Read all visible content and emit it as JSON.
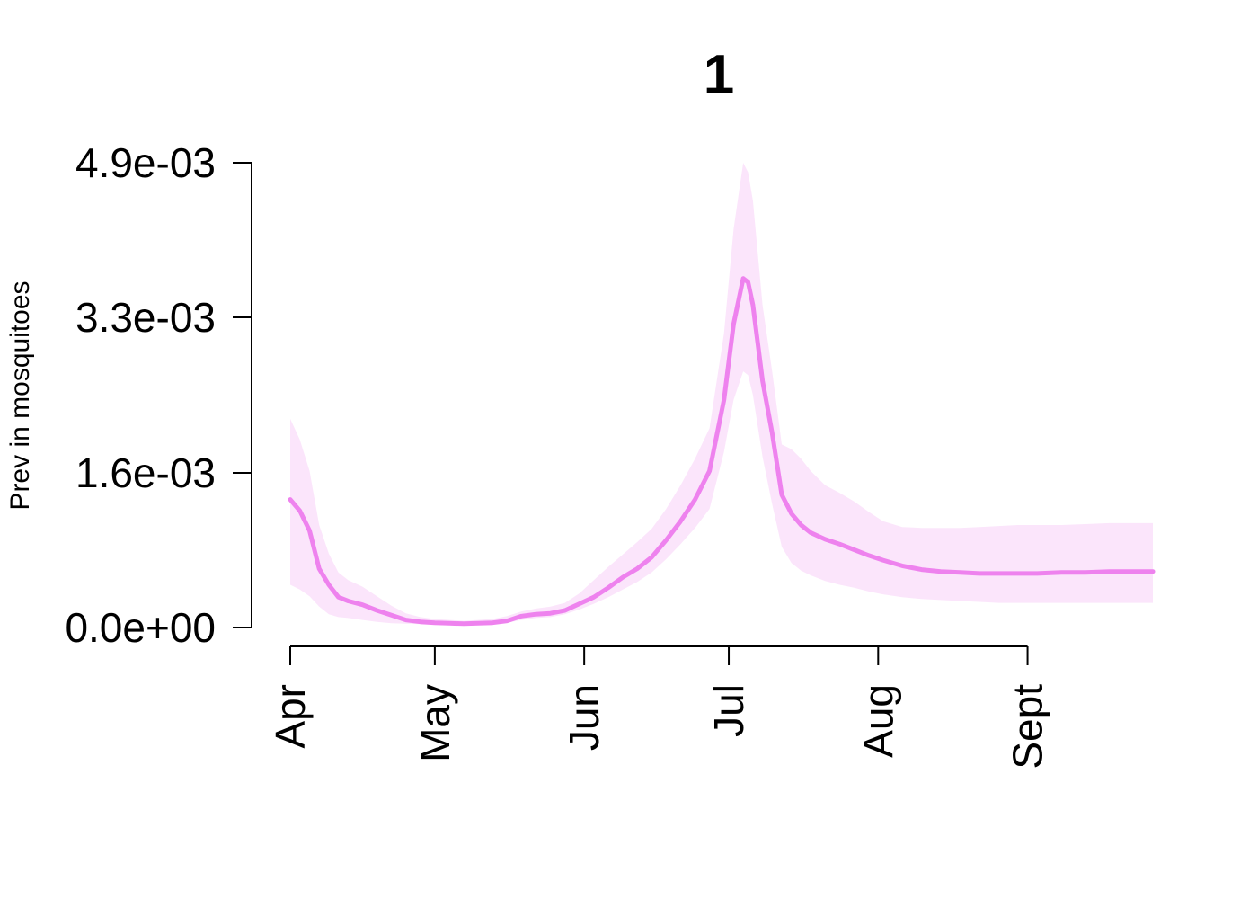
{
  "chart_data": {
    "type": "area",
    "title": "1",
    "xlabel": "",
    "ylabel": "Prev in mosquitoes",
    "x_ticks": [
      "Apr",
      "May",
      "Jun",
      "Jul",
      "Aug",
      "Sept"
    ],
    "y_ticks": [
      "0.0e+00",
      "1.6e-03",
      "3.3e-03",
      "4.9e-03"
    ],
    "y_tick_values": [
      0.0,
      0.00163,
      0.00327,
      0.0049
    ],
    "ylim": [
      0,
      0.0049
    ],
    "xlim": [
      "2023-04-01",
      "2023-09-27"
    ],
    "line_color": "#ee82ee",
    "band_color": "#fbe5fb",
    "series": [
      {
        "x": [
          "2023-04-01",
          "2023-04-03",
          "2023-04-05",
          "2023-04-07",
          "2023-04-09",
          "2023-04-11",
          "2023-04-13",
          "2023-04-16",
          "2023-04-19",
          "2023-04-22",
          "2023-04-25",
          "2023-04-28",
          "2023-05-01",
          "2023-05-04",
          "2023-05-07",
          "2023-05-10",
          "2023-05-13",
          "2023-05-16",
          "2023-05-19",
          "2023-05-22",
          "2023-05-25",
          "2023-05-28",
          "2023-05-31",
          "2023-06-03",
          "2023-06-06",
          "2023-06-09",
          "2023-06-12",
          "2023-06-15",
          "2023-06-18",
          "2023-06-21",
          "2023-06-24",
          "2023-06-27",
          "2023-06-30",
          "2023-07-02",
          "2023-07-04",
          "2023-07-05",
          "2023-07-06",
          "2023-07-08",
          "2023-07-10",
          "2023-07-12",
          "2023-07-14",
          "2023-07-16",
          "2023-07-18",
          "2023-07-21",
          "2023-07-24",
          "2023-07-27",
          "2023-07-30",
          "2023-08-02",
          "2023-08-06",
          "2023-08-10",
          "2023-08-14",
          "2023-08-18",
          "2023-08-22",
          "2023-08-26",
          "2023-08-30",
          "2023-09-03",
          "2023-09-08",
          "2023-09-13",
          "2023-09-18",
          "2023-09-23",
          "2023-09-27"
        ],
        "mean": [
          0.00135,
          0.00123,
          0.00102,
          0.00062,
          0.00045,
          0.00032,
          0.00028,
          0.00024,
          0.00018,
          0.00013,
          8e-05,
          6e-05,
          5e-05,
          4.5e-05,
          4e-05,
          4.5e-05,
          5e-05,
          7e-05,
          0.00012,
          0.00014,
          0.00015,
          0.00018,
          0.00025,
          0.00032,
          0.00042,
          0.00053,
          0.00062,
          0.00074,
          0.00092,
          0.00112,
          0.00135,
          0.00165,
          0.0024,
          0.0032,
          0.00368,
          0.00364,
          0.0034,
          0.0026,
          0.00205,
          0.0014,
          0.0012,
          0.00108,
          0.001,
          0.00093,
          0.00088,
          0.00082,
          0.00076,
          0.00071,
          0.00065,
          0.00061,
          0.00059,
          0.00058,
          0.00057,
          0.00057,
          0.00057,
          0.00057,
          0.00058,
          0.00058,
          0.00059,
          0.00059,
          0.00059
        ],
        "lower": [
          0.00045,
          0.0004,
          0.00033,
          0.00022,
          0.00014,
          0.00011,
          0.0001,
          8e-05,
          6e-05,
          4.5e-05,
          4e-05,
          3.5e-05,
          3e-05,
          3e-05,
          2.5e-05,
          3e-05,
          3.5e-05,
          5e-05,
          8e-05,
          0.0001,
          0.00011,
          0.00014,
          0.00019,
          0.00025,
          0.00032,
          0.0004,
          0.00048,
          0.00058,
          0.00072,
          0.00088,
          0.00105,
          0.00125,
          0.00185,
          0.0024,
          0.0027,
          0.00266,
          0.00245,
          0.0018,
          0.0013,
          0.00085,
          0.00068,
          0.0006,
          0.00055,
          0.00049,
          0.00045,
          0.00042,
          0.00038,
          0.00035,
          0.00032,
          0.0003,
          0.00029,
          0.00028,
          0.00027,
          0.00026,
          0.00026,
          0.00026,
          0.00026,
          0.00026,
          0.00026,
          0.00026,
          0.00026
        ],
        "upper": [
          0.0022,
          0.00198,
          0.00165,
          0.00108,
          0.00078,
          0.00058,
          0.0005,
          0.00043,
          0.00033,
          0.00023,
          0.00015,
          0.00011,
          9e-05,
          8e-05,
          7e-05,
          8e-05,
          9e-05,
          0.00012,
          0.00017,
          0.0002,
          0.00022,
          0.00026,
          0.00036,
          0.0005,
          0.00064,
          0.00077,
          0.0009,
          0.00104,
          0.00125,
          0.0015,
          0.00178,
          0.0021,
          0.0031,
          0.0042,
          0.0049,
          0.0048,
          0.0045,
          0.0034,
          0.0027,
          0.00193,
          0.00188,
          0.00178,
          0.00165,
          0.0015,
          0.00142,
          0.00133,
          0.00122,
          0.00112,
          0.00106,
          0.00105,
          0.00105,
          0.00105,
          0.00106,
          0.00107,
          0.00108,
          0.00108,
          0.00108,
          0.00109,
          0.0011,
          0.0011,
          0.0011
        ]
      }
    ]
  }
}
